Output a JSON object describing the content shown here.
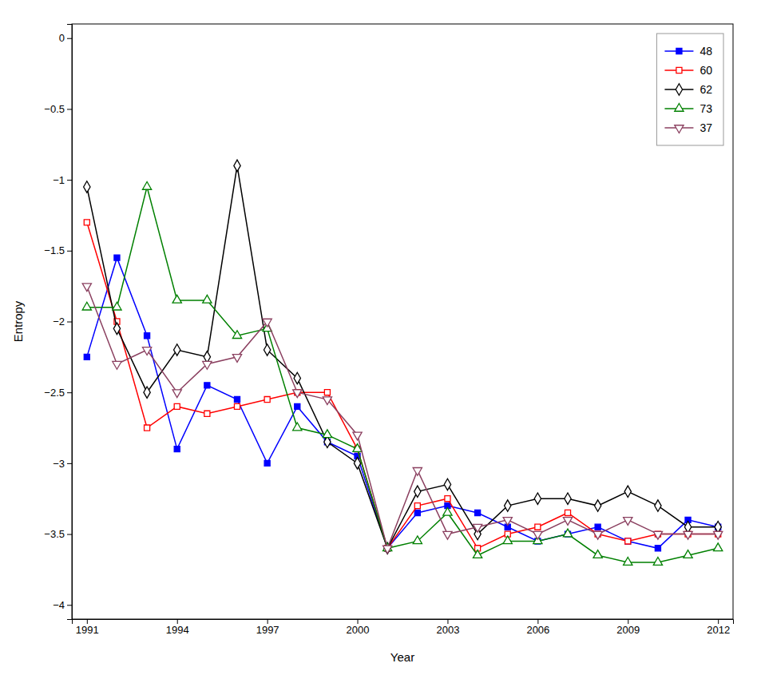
{
  "chart_data": {
    "type": "line",
    "xlabel": "Year",
    "ylabel": "Entropy",
    "x": [
      1991,
      1992,
      1993,
      1994,
      1995,
      1996,
      1997,
      1998,
      1999,
      2000,
      2001,
      2002,
      2003,
      2004,
      2005,
      2006,
      2007,
      2008,
      2009,
      2010,
      2011,
      2012
    ],
    "series": [
      {
        "name": "48",
        "color": "blue",
        "marker": "filled-square",
        "values": [
          -2.25,
          -1.55,
          -2.1,
          -2.9,
          -2.45,
          -2.55,
          -3.0,
          -2.6,
          -2.85,
          -2.95,
          -3.6,
          -3.35,
          -3.3,
          -3.35,
          -3.45,
          -3.55,
          -3.5,
          -3.45,
          -3.55,
          -3.6,
          -3.4,
          -3.45
        ]
      },
      {
        "name": "60",
        "color": "red",
        "marker": "open-square",
        "values": [
          -1.3,
          -2.0,
          -2.75,
          -2.6,
          -2.65,
          -2.6,
          -2.55,
          -2.5,
          -2.5,
          -2.9,
          -3.6,
          -3.3,
          -3.25,
          -3.6,
          -3.5,
          -3.45,
          -3.35,
          -3.5,
          -3.55,
          -3.5,
          -3.5,
          -3.5
        ]
      },
      {
        "name": "62",
        "color": "black",
        "marker": "open-diamond",
        "values": [
          -1.05,
          -2.05,
          -2.5,
          -2.2,
          -2.25,
          -0.9,
          -2.2,
          -2.4,
          -2.85,
          -3.0,
          -3.6,
          -3.2,
          -3.15,
          -3.5,
          -3.3,
          -3.25,
          -3.25,
          -3.3,
          -3.2,
          -3.3,
          -3.45,
          -3.45
        ]
      },
      {
        "name": "73",
        "color": "green",
        "marker": "open-triangle-up",
        "values": [
          -1.9,
          -1.9,
          -1.05,
          -1.85,
          -1.85,
          -2.1,
          -2.05,
          -2.75,
          -2.8,
          -2.9,
          -3.6,
          -3.55,
          -3.35,
          -3.65,
          -3.55,
          -3.55,
          -3.5,
          -3.65,
          -3.7,
          -3.7,
          -3.65,
          -3.6
        ]
      },
      {
        "name": "37",
        "color": "#8B4060",
        "marker": "open-triangle-down",
        "values": [
          -1.75,
          -2.3,
          -2.2,
          -2.5,
          -2.3,
          -2.25,
          -2.0,
          -2.5,
          -2.55,
          -2.8,
          -3.6,
          -3.05,
          -3.5,
          -3.45,
          -3.4,
          -3.5,
          -3.4,
          -3.5,
          -3.4,
          -3.5,
          -3.5,
          -3.5
        ]
      }
    ],
    "xlim": [
      1990.5,
      2012.5
    ],
    "xticks": [
      1991,
      1994,
      1997,
      2000,
      2003,
      2006,
      2009,
      2012
    ],
    "ylim": [
      -4.1,
      0.1
    ],
    "yticks": [
      0,
      {
        "value": -0.5,
        "label": "−0.5"
      },
      {
        "value": -1.0,
        "label": "−1"
      },
      {
        "value": -1.5,
        "label": "−1.5"
      },
      {
        "value": -2.0,
        "label": "−2"
      },
      {
        "value": -2.5,
        "label": "−2.5"
      },
      {
        "value": -3.0,
        "label": "−3"
      },
      {
        "value": -3.5,
        "label": "−3.5"
      },
      {
        "value": -4.0,
        "label": "−4"
      }
    ],
    "legend": "upper-right",
    "grid": false
  }
}
